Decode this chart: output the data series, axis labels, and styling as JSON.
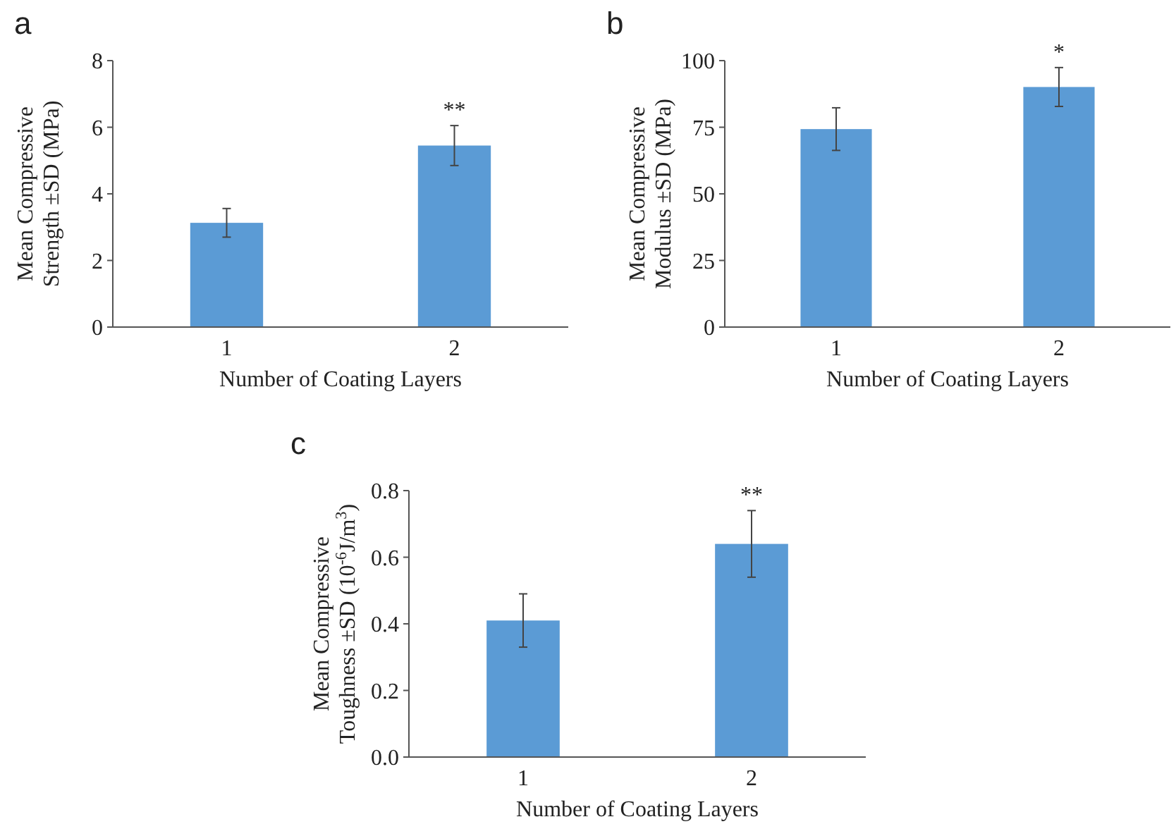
{
  "chart_data": [
    {
      "type": "bar",
      "title": "a",
      "xlabel": "Number of Coating Layers",
      "ylabel": "Mean Compressive\nStrength ±SD (MPa)",
      "categories": [
        "1",
        "2"
      ],
      "values": [
        3.13,
        5.45
      ],
      "errors": [
        0.43,
        0.6
      ],
      "color": "#5b9bd5",
      "ylim": [
        0,
        8
      ],
      "yticks": [
        0,
        2,
        4,
        6,
        8
      ],
      "grid": false,
      "annotations": [
        {
          "text": "**",
          "x": "2",
          "y": 6.05
        }
      ]
    },
    {
      "type": "bar",
      "title": "b",
      "xlabel": "Number of Coating Layers",
      "ylabel": "Mean Compressive\nModulus ±SD (MPa)",
      "categories": [
        "1",
        "2"
      ],
      "values": [
        74.3,
        90.1
      ],
      "errors": [
        8,
        7.3
      ],
      "color": "#5b9bd5",
      "ylim": [
        0,
        100
      ],
      "yticks": [
        0,
        25,
        50,
        75,
        100
      ],
      "grid": false,
      "annotations": [
        {
          "text": "*",
          "x": "2",
          "y": 97.4
        }
      ]
    },
    {
      "type": "bar",
      "title": "c",
      "xlabel": "Number of Coating Layers",
      "ylabel": "Mean Compressive\nToughness ±SD (10$^{-6}$J/m$^{3}$)",
      "categories": [
        "1",
        "2"
      ],
      "values": [
        0.41,
        0.64
      ],
      "errors": [
        0.08,
        0.1
      ],
      "color": "#5b9bd5",
      "ylim": [
        0,
        0.8
      ],
      "yticks": [
        {
          "value": 0,
          "label": "0.0"
        },
        0.2,
        0.4,
        0.6,
        0.8
      ],
      "grid": false,
      "annotations": [
        {
          "text": "**",
          "x": "2",
          "y": 0.74
        }
      ]
    }
  ]
}
